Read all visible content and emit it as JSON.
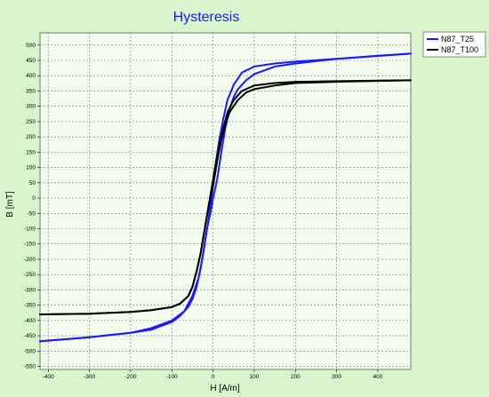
{
  "chart_data": {
    "type": "line",
    "title": "Hysteresis",
    "xlabel": "H [A/m]",
    "ylabel": "B [mT]",
    "xlim": [
      -420,
      480
    ],
    "ylim": [
      -560,
      540
    ],
    "xticks": [
      -400,
      -300,
      -200,
      -100,
      0,
      100,
      200,
      300,
      400
    ],
    "yticks": [
      500,
      450,
      400,
      350,
      300,
      250,
      200,
      150,
      100,
      50,
      0,
      -50,
      -100,
      -150,
      -200,
      -250,
      -300,
      -350,
      -400,
      -450,
      -500,
      -550
    ],
    "grid": true,
    "legend_position": "top-right-outside",
    "series": [
      {
        "name": "N87_T25",
        "color": "#1a1aff",
        "upper": {
          "x": [
            480,
            400,
            300,
            200,
            150,
            100,
            70,
            50,
            35,
            25,
            15,
            5,
            0,
            -10,
            -20,
            -30,
            -40,
            -50,
            -60,
            -80,
            -100,
            -150,
            -200,
            -300,
            -420
          ],
          "y": [
            472,
            465,
            455,
            446,
            440,
            430,
            410,
            370,
            320,
            260,
            190,
            100,
            40,
            -60,
            -150,
            -230,
            -290,
            -330,
            -355,
            -385,
            -405,
            -430,
            -440,
            -455,
            -468
          ]
        },
        "lower": {
          "x": [
            -420,
            -300,
            -200,
            -150,
            -100,
            -70,
            -50,
            -35,
            -25,
            -15,
            -5,
            0,
            10,
            20,
            30,
            40,
            50,
            60,
            80,
            100,
            150,
            200,
            300,
            480
          ],
          "y": [
            -468,
            -455,
            -440,
            -425,
            -400,
            -370,
            -320,
            -260,
            -190,
            -100,
            -40,
            0,
            60,
            150,
            230,
            290,
            330,
            355,
            385,
            405,
            430,
            440,
            455,
            472
          ]
        }
      },
      {
        "name": "N87_T100",
        "color": "#000000",
        "upper": {
          "x": [
            480,
            400,
            300,
            200,
            150,
            100,
            70,
            50,
            35,
            25,
            15,
            5,
            0,
            -10,
            -20,
            -30,
            -40,
            -50,
            -60,
            -80,
            -100,
            -150,
            -200,
            -300,
            -420
          ],
          "y": [
            385,
            384,
            382,
            380,
            376,
            368,
            350,
            320,
            280,
            230,
            170,
            100,
            60,
            -20,
            -100,
            -180,
            -240,
            -290,
            -320,
            -345,
            -356,
            -366,
            -372,
            -378,
            -380
          ]
        },
        "lower": {
          "x": [
            -420,
            -300,
            -200,
            -150,
            -100,
            -80,
            -60,
            -50,
            -40,
            -30,
            -20,
            -10,
            0,
            10,
            20,
            30,
            40,
            60,
            80,
            100,
            150,
            200,
            300,
            480
          ],
          "y": [
            -380,
            -378,
            -372,
            -366,
            -356,
            -345,
            -320,
            -290,
            -240,
            -180,
            -100,
            -20,
            40,
            120,
            190,
            240,
            280,
            320,
            345,
            356,
            368,
            376,
            380,
            385
          ]
        }
      }
    ]
  }
}
